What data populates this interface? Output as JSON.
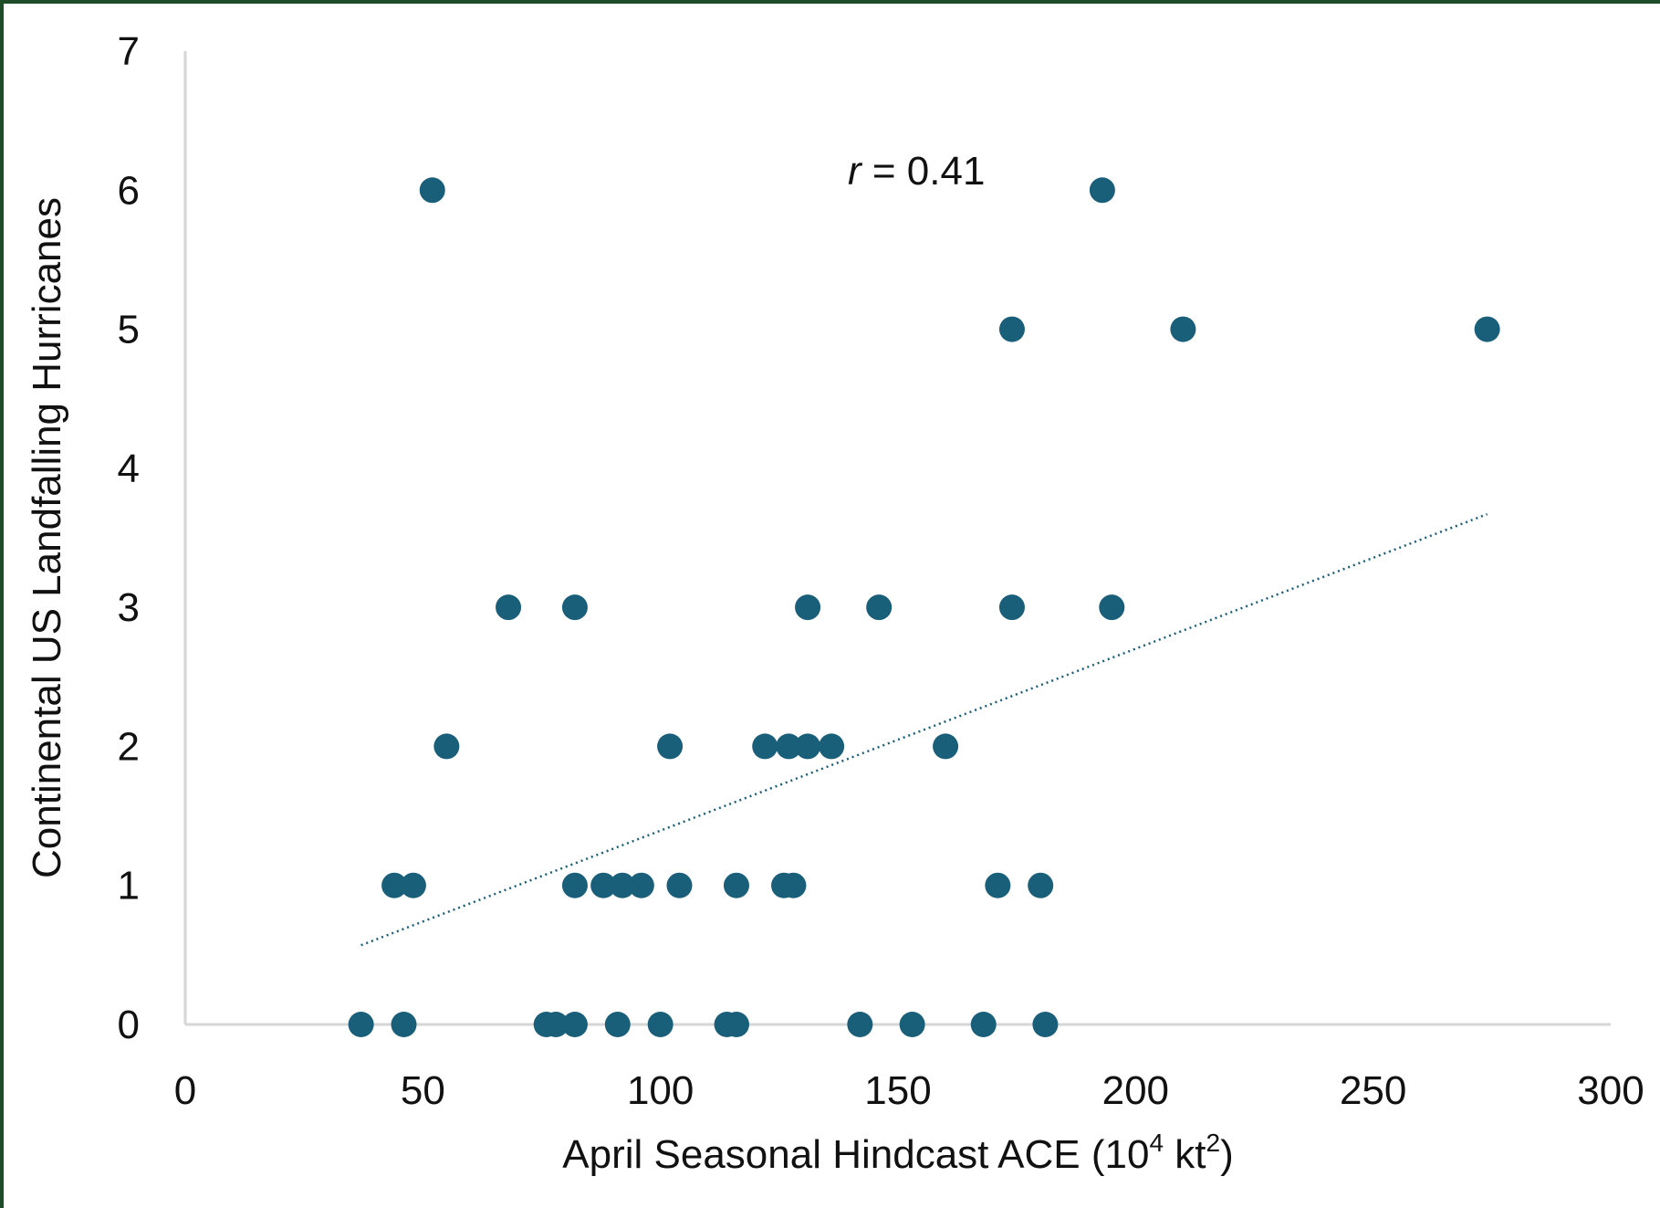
{
  "chart_data": {
    "type": "scatter",
    "xlabel": "April Seasonal Hindcast ACE (10",
    "xlabel_sup1": "4",
    "xlabel_mid": " kt",
    "xlabel_sup2": "2",
    "xlabel_end": ")",
    "ylabel": "Continental US Landfalling Hurricanes",
    "xlim": [
      0,
      300
    ],
    "ylim": [
      0,
      7
    ],
    "x_ticks": [
      "0",
      "50",
      "100",
      "150",
      "200",
      "250",
      "300"
    ],
    "y_ticks": [
      "0",
      "1",
      "2",
      "3",
      "4",
      "5",
      "6",
      "7"
    ],
    "annotation": {
      "prefix": "r",
      "text": " = 0.41"
    },
    "grid": false,
    "legend": "none",
    "marker_color": "#1a5f7a",
    "trendline": {
      "style": "dotted",
      "x": [
        37,
        274
      ],
      "y": [
        0.57,
        3.67
      ]
    },
    "points": [
      [
        52,
        6
      ],
      [
        193,
        6
      ],
      [
        174,
        5
      ],
      [
        210,
        5
      ],
      [
        274,
        5
      ],
      [
        68,
        3
      ],
      [
        82,
        3
      ],
      [
        131,
        3
      ],
      [
        146,
        3
      ],
      [
        174,
        3
      ],
      [
        195,
        3
      ],
      [
        55,
        2
      ],
      [
        102,
        2
      ],
      [
        122,
        2
      ],
      [
        127,
        2
      ],
      [
        131,
        2
      ],
      [
        136,
        2
      ],
      [
        160,
        2
      ],
      [
        44,
        1
      ],
      [
        48,
        1
      ],
      [
        82,
        1
      ],
      [
        88,
        1
      ],
      [
        92,
        1
      ],
      [
        96,
        1
      ],
      [
        104,
        1
      ],
      [
        116,
        1
      ],
      [
        126,
        1
      ],
      [
        128,
        1
      ],
      [
        171,
        1
      ],
      [
        180,
        1
      ],
      [
        37,
        0
      ],
      [
        46,
        0
      ],
      [
        76,
        0
      ],
      [
        78,
        0
      ],
      [
        82,
        0
      ],
      [
        91,
        0
      ],
      [
        100,
        0
      ],
      [
        114,
        0
      ],
      [
        116,
        0
      ],
      [
        142,
        0
      ],
      [
        153,
        0
      ],
      [
        168,
        0
      ],
      [
        181,
        0
      ]
    ]
  }
}
